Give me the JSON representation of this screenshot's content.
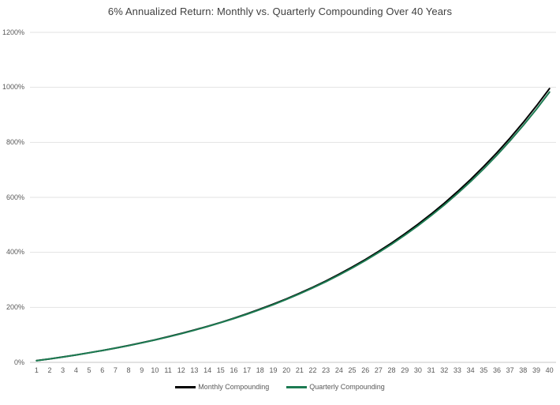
{
  "chart_data": {
    "type": "line",
    "title": "6% Annualized Return: Monthly vs. Quarterly Compounding Over 40 Years",
    "xlabel": "",
    "ylabel": "",
    "categories": [
      "1",
      "2",
      "3",
      "4",
      "5",
      "6",
      "7",
      "8",
      "9",
      "10",
      "11",
      "12",
      "13",
      "14",
      "15",
      "16",
      "17",
      "18",
      "19",
      "20",
      "21",
      "22",
      "23",
      "24",
      "25",
      "26",
      "27",
      "28",
      "29",
      "30",
      "31",
      "32",
      "33",
      "34",
      "35",
      "36",
      "37",
      "38",
      "39",
      "40"
    ],
    "series": [
      {
        "name": "Monthly Compounding",
        "color": "#000000",
        "values": [
          6.2,
          12.7,
          19.7,
          27.0,
          34.9,
          43.2,
          52.0,
          61.4,
          71.4,
          81.9,
          93.2,
          105.1,
          117.7,
          131.2,
          145.4,
          160.5,
          176.6,
          193.7,
          211.8,
          231.0,
          251.4,
          273.1,
          296.1,
          320.6,
          346.5,
          374.0,
          403.3,
          434.3,
          467.3,
          502.3,
          539.4,
          578.8,
          620.7,
          665.2,
          712.4,
          762.5,
          815.7,
          872.1,
          932.1,
          995.7
        ]
      },
      {
        "name": "Quarterly Compounding",
        "color": "#1d7b52",
        "values": [
          6.1,
          12.6,
          19.6,
          26.9,
          34.7,
          43.0,
          51.7,
          61.0,
          70.9,
          81.4,
          92.5,
          104.3,
          116.9,
          130.2,
          144.3,
          159.3,
          175.2,
          192.1,
          210.0,
          229.1,
          249.3,
          270.7,
          293.4,
          317.6,
          343.2,
          370.4,
          399.3,
          429.9,
          462.4,
          496.9,
          533.6,
          572.4,
          613.7,
          657.5,
          704.0,
          753.3,
          805.7,
          861.3,
          920.2,
          982.9
        ]
      }
    ],
    "ylim": [
      0,
      1200
    ],
    "y_ticks": [
      "0%",
      "200%",
      "400%",
      "600%",
      "800%",
      "1000%",
      "1200%"
    ],
    "grid": "horizontal",
    "legend_position": "bottom",
    "colors": {
      "title_text": "#404040",
      "tick_text": "#595959",
      "gridline": "#e2e2e2",
      "axis_line": "#c6c6c6",
      "background": "#ffffff"
    }
  }
}
